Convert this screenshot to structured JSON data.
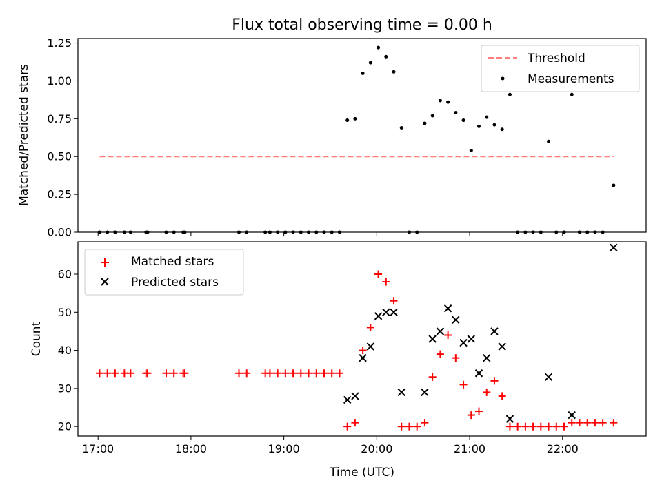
{
  "figure": {
    "title": "Flux total observing time = 0.00 h"
  },
  "chart_data": [
    {
      "type": "scatter",
      "ylabel": "Matched/Predicted stars",
      "xlim": [
        "16:47",
        "22:54"
      ],
      "ylim": [
        0,
        1.28
      ],
      "yticks": [
        "0.00",
        "0.25",
        "0.50",
        "0.75",
        "1.00",
        "1.25"
      ],
      "grid": false,
      "legend_position": "top-right",
      "threshold": {
        "name": "Threshold",
        "value": 0.5,
        "x_start": "17:01",
        "x_end": "22:33",
        "color": "#ff7f7f"
      },
      "series": [
        {
          "name": "Measurements",
          "color": "#000000",
          "x": [
            "17:01",
            "17:06",
            "17:11",
            "17:17",
            "17:21",
            "17:31",
            "17:32",
            "17:44",
            "17:49",
            "17:55",
            "17:56",
            "18:31",
            "18:36",
            "18:48",
            "18:51",
            "18:56",
            "19:01",
            "19:06",
            "19:11",
            "19:16",
            "19:21",
            "19:26",
            "19:31",
            "19:36",
            "19:41",
            "19:46",
            "19:51",
            "19:56",
            "20:01",
            "20:06",
            "20:11",
            "20:16",
            "20:21",
            "20:26",
            "20:31",
            "20:36",
            "20:41",
            "20:46",
            "20:51",
            "20:56",
            "21:01",
            "21:06",
            "21:11",
            "21:16",
            "21:21",
            "21:26",
            "21:31",
            "21:36",
            "21:41",
            "21:46",
            "21:51",
            "21:56",
            "22:01",
            "22:06",
            "22:11",
            "22:16",
            "22:21",
            "22:26",
            "22:33"
          ],
          "y": [
            0,
            0,
            0,
            0,
            0,
            0,
            0,
            0,
            0,
            0,
            0,
            0,
            0,
            0,
            0,
            0,
            0,
            0,
            0,
            0,
            0,
            0,
            0,
            0,
            0.74,
            0.75,
            1.05,
            1.12,
            1.22,
            1.16,
            1.06,
            0.69,
            0,
            0,
            0.72,
            0.77,
            0.87,
            0.86,
            0.79,
            0.74,
            0.54,
            0.7,
            0.76,
            0.71,
            0.68,
            0.91,
            0,
            0,
            0,
            0,
            0.6,
            0,
            0,
            0.91,
            0,
            0,
            0,
            0,
            0.31
          ]
        }
      ]
    },
    {
      "type": "scatter",
      "xlabel": "Time (UTC)",
      "ylabel": "Count",
      "ylim": [
        17.5,
        68.5
      ],
      "yticks": [
        "20",
        "30",
        "40",
        "50",
        "60"
      ],
      "xticks": [
        "17:00",
        "18:00",
        "19:00",
        "20:00",
        "21:00",
        "22:00"
      ],
      "grid": false,
      "legend_position": "top-left",
      "series": [
        {
          "name": "Matched stars",
          "marker": "+",
          "color": "#ff0000",
          "x": [
            "17:01",
            "17:06",
            "17:11",
            "17:17",
            "17:21",
            "17:31",
            "17:32",
            "17:44",
            "17:49",
            "17:55",
            "17:56",
            "18:31",
            "18:36",
            "18:48",
            "18:51",
            "18:56",
            "19:01",
            "19:06",
            "19:11",
            "19:16",
            "19:21",
            "19:26",
            "19:31",
            "19:36",
            "19:41",
            "19:46",
            "19:51",
            "19:56",
            "20:01",
            "20:06",
            "20:11",
            "20:16",
            "20:21",
            "20:26",
            "20:31",
            "20:36",
            "20:41",
            "20:46",
            "20:51",
            "20:56",
            "21:01",
            "21:06",
            "21:11",
            "21:16",
            "21:21",
            "21:26",
            "21:31",
            "21:36",
            "21:41",
            "21:46",
            "21:51",
            "21:56",
            "22:01",
            "22:06",
            "22:11",
            "22:16",
            "22:21",
            "22:26",
            "22:33"
          ],
          "y": [
            34,
            34,
            34,
            34,
            34,
            34,
            34,
            34,
            34,
            34,
            34,
            34,
            34,
            34,
            34,
            34,
            34,
            34,
            34,
            34,
            34,
            34,
            34,
            34,
            20,
            21,
            40,
            46,
            60,
            58,
            53,
            20,
            20,
            20,
            21,
            33,
            39,
            44,
            38,
            31,
            23,
            24,
            29,
            32,
            28,
            20,
            20,
            20,
            20,
            20,
            20,
            20,
            20,
            21,
            21,
            21,
            21,
            21,
            21
          ]
        },
        {
          "name": "Predicted stars",
          "marker": "x",
          "color": "#000000",
          "x": [
            "19:41",
            "19:46",
            "19:51",
            "19:56",
            "20:01",
            "20:06",
            "20:11",
            "20:16",
            "20:31",
            "20:36",
            "20:41",
            "20:46",
            "20:51",
            "20:56",
            "21:01",
            "21:06",
            "21:11",
            "21:16",
            "21:21",
            "21:26",
            "21:51",
            "22:06",
            "22:33"
          ],
          "y": [
            27,
            28,
            38,
            41,
            49,
            50,
            50,
            29,
            29,
            43,
            45,
            51,
            48,
            42,
            43,
            34,
            38,
            45,
            41,
            22,
            33,
            23,
            67
          ]
        }
      ]
    }
  ]
}
